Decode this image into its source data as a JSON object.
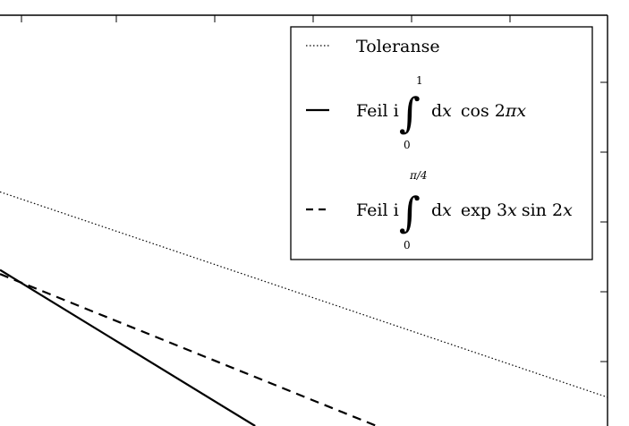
{
  "chart_data": {
    "type": "line",
    "title": "",
    "xlabel": "",
    "ylabel": "",
    "grid": false,
    "legend_placement": "top-right",
    "series": [
      {
        "key": "tolerance",
        "style": "dotted",
        "label": "Toleranse",
        "x": [
          0,
          1
        ],
        "y": [
          0.57,
          0.07
        ]
      },
      {
        "key": "cos",
        "style": "solid",
        "label_prefix": "Feil i",
        "upper": "1",
        "lower": "0",
        "integrand_d": "d",
        "integrand_x": "x",
        "integrand_rest": "cos 2",
        "integrand_pi": "π",
        "integrand_x2": "x",
        "x": [
          0,
          0.42
        ],
        "y": [
          0.38,
          0.0
        ]
      },
      {
        "key": "exp",
        "style": "dashed",
        "label_prefix": "Feil i",
        "upper": "π/4",
        "lower": "0",
        "integrand_d": "d",
        "integrand_x": "x",
        "integrand_rest": "exp 3",
        "integrand_x2": "x",
        "integrand_tail": "sin 2",
        "integrand_x3": "x",
        "x": [
          0,
          0.62
        ],
        "y": [
          0.37,
          0.0
        ]
      }
    ]
  }
}
